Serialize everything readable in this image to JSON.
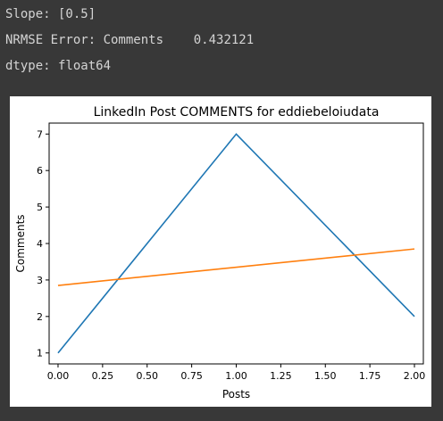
{
  "output_lines": {
    "slope": "Slope: [0.5]",
    "nrmse_label": "NRMSE Error: Comments",
    "nrmse_value": "0.432121",
    "dtype": "dtype: float64"
  },
  "chart_data": {
    "type": "line",
    "title": "LinkedIn Post COMMENTS for eddiebeloiudata",
    "xlabel": "Posts",
    "ylabel": "Comments",
    "xlim": [
      -0.05,
      2.05
    ],
    "ylim": [
      0.7,
      7.3
    ],
    "xticks": [
      "0.00",
      "0.25",
      "0.50",
      "0.75",
      "1.00",
      "1.25",
      "1.50",
      "1.75",
      "2.00"
    ],
    "yticks": [
      "1",
      "2",
      "3",
      "4",
      "5",
      "6",
      "7"
    ],
    "grid": false,
    "series": [
      {
        "color": "#1f77b4",
        "x": [
          0,
          1,
          2
        ],
        "y": [
          1,
          7,
          2
        ]
      },
      {
        "color": "#ff7f0e",
        "x": [
          0,
          2
        ],
        "y": [
          2.85,
          3.85
        ]
      }
    ]
  }
}
